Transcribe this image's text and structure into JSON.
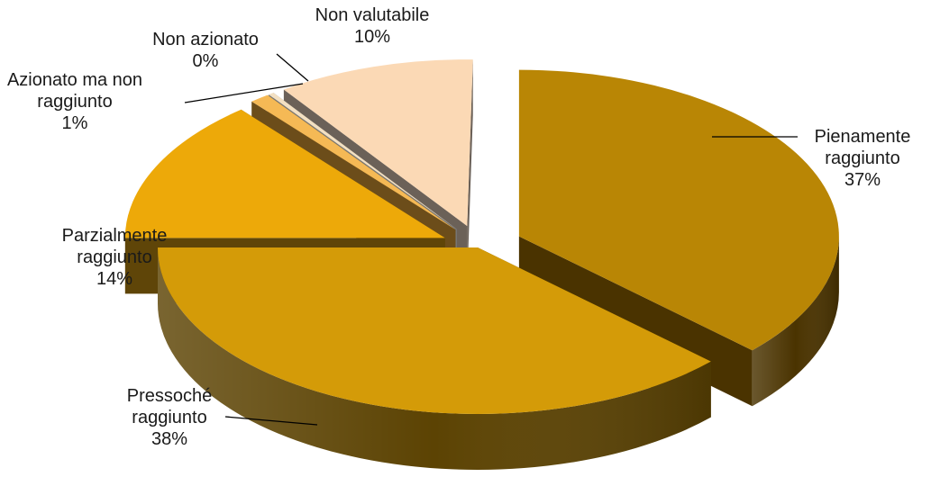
{
  "chart_data": {
    "type": "pie",
    "title": "",
    "unit": "%",
    "slices": [
      {
        "label_lines": [
          "Pienamente",
          "raggiunto"
        ],
        "value": 37,
        "value_label": "37%",
        "top_color": "#b98605",
        "side_color": "#4a3300"
      },
      {
        "label_lines": [
          "Pressoché",
          "raggiunto"
        ],
        "value": 38,
        "value_label": "38%",
        "top_color": "#d49b08",
        "side_color": "#5c4303"
      },
      {
        "label_lines": [
          "Parzialmente",
          "raggiunto"
        ],
        "value": 14,
        "value_label": "14%",
        "top_color": "#eda909",
        "side_color": "#5f4508"
      },
      {
        "label_lines": [
          "Azionato ma non",
          "raggiunto"
        ],
        "value": 1,
        "value_label": "1%",
        "top_color": "#f5b955",
        "side_color": "#6c4d1a"
      },
      {
        "label_lines": [
          "Non azionato"
        ],
        "value": 0,
        "value_label": "0%",
        "top_color": "#f3e0c2",
        "side_color": "#777777"
      },
      {
        "label_lines": [
          "Non valutabile"
        ],
        "value": 10,
        "value_label": "10%",
        "top_color": "#fbd9b5",
        "side_color": "#6b6158"
      }
    ]
  }
}
